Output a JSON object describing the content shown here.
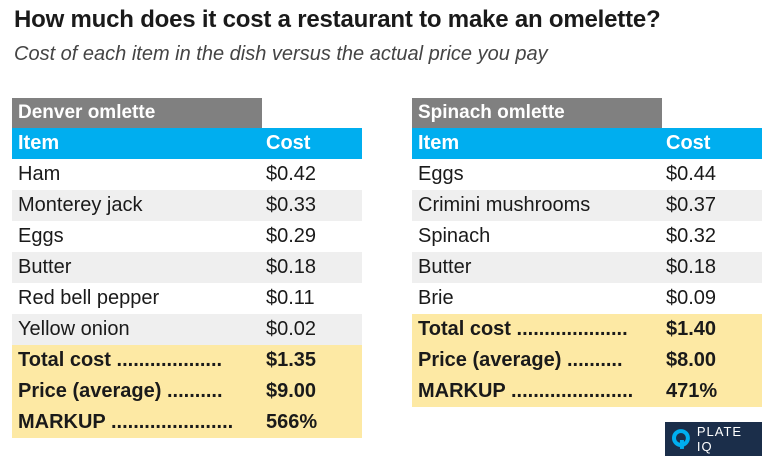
{
  "title": "How much does it cost a restaurant to make an omelette?",
  "subtitle": "Cost of each item in the dish versus the actual price you pay",
  "tables": [
    {
      "name": "Denver omlette",
      "header": {
        "item": "Item",
        "cost": "Cost"
      },
      "rows": [
        {
          "item": "Ham",
          "cost": "$0.42"
        },
        {
          "item": "Monterey jack",
          "cost": "$0.33"
        },
        {
          "item": "Eggs",
          "cost": "$0.29"
        },
        {
          "item": "Butter",
          "cost": "$0.18"
        },
        {
          "item": "Red bell pepper",
          "cost": "$0.11"
        },
        {
          "item": "Yellow onion",
          "cost": "$0.02"
        }
      ],
      "summary": [
        {
          "item": "Total cost ...................",
          "cost": "$1.35"
        },
        {
          "item": "Price (average) ..........",
          "cost": "$9.00"
        },
        {
          "item": "MARKUP ......................",
          "cost": "566%"
        }
      ]
    },
    {
      "name": "Spinach omlette",
      "header": {
        "item": "Item",
        "cost": "Cost"
      },
      "rows": [
        {
          "item": "Eggs",
          "cost": "$0.44"
        },
        {
          "item": "Crimini mushrooms",
          "cost": "$0.37"
        },
        {
          "item": "Spinach",
          "cost": "$0.32"
        },
        {
          "item": "Butter",
          "cost": "$0.18"
        },
        {
          "item": "Brie",
          "cost": "$0.09"
        }
      ],
      "summary": [
        {
          "item": "Total cost ....................",
          "cost": "$1.40"
        },
        {
          "item": "Price (average) ..........",
          "cost": "$8.00"
        },
        {
          "item": "MARKUP ......................",
          "cost": "471%"
        }
      ]
    }
  ],
  "logo": {
    "text": "PLATE IQ",
    "icon": "plate-iq-logo-icon"
  },
  "colors": {
    "header": "#00aeef",
    "name_cell": "#808080",
    "summary": "#fde9a4",
    "stripe": "#efefef",
    "logo_bg": "#1b2e4a"
  }
}
